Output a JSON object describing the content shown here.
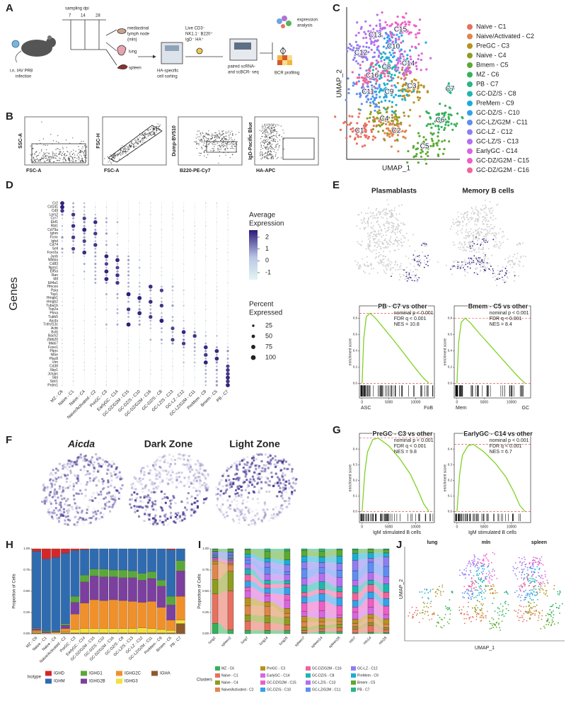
{
  "panel_labels": [
    "A",
    "B",
    "C",
    "D",
    "E",
    "F",
    "G",
    "H",
    "I",
    "J"
  ],
  "panel_a": {
    "texts": [
      "i.n. IAV PR8",
      "infection",
      "sampling dpi",
      "7",
      "14",
      "28",
      "mediastinal",
      "lymph node",
      "(mln)",
      "lung",
      "spleen",
      "HA-specific",
      "cell sorting",
      "Live CD3⁻",
      "NK1.1⁻ B220⁺",
      "IgD⁻ HA⁺",
      "paired scRNA-",
      "and scBCR- seq",
      "expression",
      "analysis",
      "BCR profiling"
    ]
  },
  "panel_b": {
    "axes": [
      [
        "SSC-A",
        "FSC-A"
      ],
      [
        "FSC-H",
        "FSC-A"
      ],
      [
        "Dump-BV510",
        "B220-PE-Cy7"
      ],
      [
        "IgD-Pacific Blue",
        "HA-APC"
      ]
    ]
  },
  "panel_c": {
    "x_label": "UMAP_1",
    "y_label": "UMAP_2",
    "map_labels": [
      "C1",
      "C2",
      "C3",
      "C4",
      "C5",
      "C6",
      "C7",
      "C8",
      "C9",
      "C10",
      "C11",
      "C12",
      "C13",
      "C14",
      "C15",
      "C16"
    ],
    "clusters": [
      {
        "name": "Naive - C1",
        "color": "#e8705f"
      },
      {
        "name": "Naive/Activated - C2",
        "color": "#e0864a"
      },
      {
        "name": "PreGC - C3",
        "color": "#b8921e"
      },
      {
        "name": "Naive - C4",
        "color": "#8e9c1f"
      },
      {
        "name": "Bmem - C5",
        "color": "#5aab2e"
      },
      {
        "name": "MZ - C6",
        "color": "#34b25a"
      },
      {
        "name": "PB - C7",
        "color": "#28b684"
      },
      {
        "name": "GC-DZ/S - C8",
        "color": "#1fb5b0"
      },
      {
        "name": "PreMem - C9",
        "color": "#1aaed6"
      },
      {
        "name": "GC-DZ/S - C10",
        "color": "#32a2ea"
      },
      {
        "name": "GC-LZ/G2M - C11",
        "color": "#5f8ef2"
      },
      {
        "name": "GC-LZ - C12",
        "color": "#8d7ff2"
      },
      {
        "name": "GC-LZ/S - C13",
        "color": "#b46ef0"
      },
      {
        "name": "EarlyGC - C14",
        "color": "#d865e0"
      },
      {
        "name": "GC-DZ/G2M - C15",
        "color": "#ee5fc6"
      },
      {
        "name": "GC-DZ/G2M - C16",
        "color": "#f0649c"
      }
    ]
  },
  "panel_d": {
    "y_label": "Genes",
    "genes": [
      "Cr2",
      "Cd1d1",
      "Cd9",
      "Lars2",
      "Ccr7",
      "Ebf1",
      "Rbl1",
      "Cd79a",
      "Ighm",
      "Fcmr",
      "Ighd",
      "Cd74",
      "Sell",
      "Fcer2a",
      "Junb",
      "Nfkbia",
      "Cd83",
      "Npm1",
      "Eif5a",
      "Ran",
      "Mif",
      "Eif4a1",
      "Hmces",
      "Ppia",
      "Top1",
      "Hmgb1",
      "Hmgb2",
      "Tuba1b",
      "Top2a",
      "Ptma",
      "Tubb5",
      "Aicda",
      "Tnfrsf13c",
      "Actb",
      "Bcl6",
      "Bach2",
      "Zbtb20",
      "Mki67",
      "Foxo1",
      "Ptprc",
      "Nt5e",
      "Plac8",
      "Vim",
      "Cd38",
      "Xbp1",
      "Jchain",
      "Slpi",
      "Sdc1",
      "Prdm1"
    ],
    "clusters": [
      "MZ - C6",
      "Naive - C1",
      "Naive - C4",
      "Naive/Activated - C2",
      "PreGC - C3",
      "EarlyGC - C14",
      "GC-DZ/G2M - C15",
      "GC-DZ/S - C10",
      "GC-DZ/G2M - C16",
      "GC-DZ/S - C8",
      "GC-LZ/S - C13",
      "GC-LZ - C12",
      "GC-LZ/G2M - C11",
      "PreMem - C9",
      "Bmem - C5",
      "PB - C7"
    ],
    "color_title": [
      "Average",
      "Expression"
    ],
    "color_ticks": [
      2,
      1,
      0,
      -1
    ],
    "clim": [
      -1.6,
      2.6
    ],
    "size_title": [
      "Percent",
      "Expressed"
    ],
    "size_ticks": [
      25,
      50,
      75,
      100
    ]
  },
  "panel_e": {
    "maps": [
      "Plasmablasts",
      "Memory B cells"
    ],
    "gsea": [
      {
        "title": "PB - C7 vs other",
        "stats": [
          "nominal p < 0.001",
          "FDR q < 0.001",
          "NES = 10.8"
        ],
        "y_label": "enrichment score",
        "x_ends": [
          "ASC",
          "FoB"
        ],
        "x": [
          0,
          300,
          800,
          1500,
          2500,
          4000,
          6000,
          8000,
          10000,
          11500,
          12500
        ],
        "values": [
          0,
          0.55,
          0.82,
          0.86,
          0.8,
          0.68,
          0.52,
          0.35,
          0.18,
          0.06,
          0
        ],
        "xlim": [
          -500,
          13500
        ],
        "ylim": [
          -0.18,
          0.95
        ],
        "xticks": [
          0,
          5000,
          10000
        ],
        "yticks": [
          {
            "value": 0,
            "label": "0.0"
          },
          0.2,
          0.4,
          0.6,
          0.8
        ]
      },
      {
        "title": "Bmem - C5 vs other",
        "stats": [
          "nominal p < 0.001",
          "FDR q < 0.001",
          "NES = 8.4"
        ],
        "y_label": "enrichment score",
        "x_ends": [
          "Mem",
          "GC"
        ],
        "x": [
          0,
          300,
          800,
          1500,
          2500,
          4000,
          6000,
          8000,
          10000,
          11500,
          12500
        ],
        "values": [
          0,
          0.5,
          0.75,
          0.8,
          0.74,
          0.62,
          0.47,
          0.32,
          0.17,
          0.06,
          0
        ],
        "xlim": [
          -500,
          13500
        ],
        "ylim": [
          -0.18,
          0.95
        ],
        "xticks": [
          0,
          5000,
          10000
        ],
        "yticks": [
          {
            "value": 0,
            "label": "0.0"
          },
          0.2,
          0.4,
          0.6,
          0.8
        ]
      }
    ]
  },
  "panel_f": {
    "titles": [
      "Aicda",
      "Dark Zone",
      "Light Zone"
    ]
  },
  "panel_g": {
    "gsea": [
      {
        "title": "PreGC - C3 vs other",
        "stats": [
          "nominal p < 0.001",
          "FDR q < 0.001",
          "NES = 9.8"
        ],
        "y_label": "enrichment score",
        "x_label": "IgM stimulated B cells",
        "x": [
          0,
          500,
          1000,
          2000,
          3000,
          5000,
          7000,
          9000,
          10500,
          11500,
          12500
        ],
        "values": [
          0,
          0.25,
          0.38,
          0.46,
          0.47,
          0.42,
          0.34,
          0.24,
          0.13,
          0.05,
          0
        ],
        "xlim": [
          -500,
          13500
        ],
        "ylim": [
          -0.07,
          0.5
        ],
        "xticks": [
          0,
          5000,
          10000
        ],
        "yticks": [
          {
            "value": 0,
            "label": "0.0"
          },
          0.1,
          0.2,
          0.3,
          0.4
        ]
      },
      {
        "title": "EarlyGC - C14 vs other",
        "stats": [
          "nominal p < 0.001",
          "FDR q < 0.001",
          "NES = 6.7"
        ],
        "y_label": "enrichment score",
        "x_label": "IgM stimulated B cells",
        "x": [
          0,
          500,
          1000,
          2000,
          3000,
          5000,
          7000,
          9000,
          10500,
          11500,
          12500
        ],
        "values": [
          0,
          0.24,
          0.36,
          0.42,
          0.43,
          0.38,
          0.31,
          0.22,
          0.12,
          0.04,
          0
        ],
        "xlim": [
          -500,
          13500
        ],
        "ylim": [
          -0.07,
          0.5
        ],
        "xticks": [
          0,
          5000,
          10000
        ],
        "yticks": [
          {
            "value": 0,
            "label": "0.0"
          },
          0.1,
          0.2,
          0.3,
          0.4
        ]
      }
    ]
  },
  "panel_h": {
    "type": "bar",
    "stacked": true,
    "y_label": "Proportion of Cells",
    "legend_title": "Isotype",
    "categories": [
      "MZ - C6",
      "Naive - C1",
      "Naive - C4",
      "Naive/Activated - C2",
      "PreGC - C3",
      "EarlyGC - C14",
      "GC-DZ/G2M - C15",
      "GC-DZ/S - C10",
      "GC-DZ/G2M - C16",
      "GC-DZ/S - C8",
      "GC-LZ/S - C13",
      "GC-LZ - C12",
      "GC-LZ/G2M - C11",
      "PreMem - C9",
      "Bmem - C5",
      "PB - C7"
    ],
    "series": [
      {
        "name": "IGHA",
        "color": "#8c5a2b",
        "values": [
          0.01,
          0,
          0,
          0.01,
          0.01,
          0.01,
          0.01,
          0.01,
          0.01,
          0.01,
          0.01,
          0.01,
          0.01,
          0.01,
          0.01,
          0.12
        ]
      },
      {
        "name": "IGHG3",
        "color": "#f2e23a",
        "values": [
          0.01,
          0,
          0.01,
          0.01,
          0.04,
          0.05,
          0.05,
          0.05,
          0.05,
          0.05,
          0.05,
          0.06,
          0.05,
          0.04,
          0.03,
          0.04
        ]
      },
      {
        "name": "IGHG2C",
        "color": "#f0902a",
        "values": [
          0.02,
          0.01,
          0.01,
          0.04,
          0.18,
          0.3,
          0.34,
          0.33,
          0.34,
          0.33,
          0.32,
          0.3,
          0.32,
          0.26,
          0.12,
          0.28
        ]
      },
      {
        "name": "IGHG2B",
        "color": "#7b3f9e",
        "values": [
          0.02,
          0.01,
          0.01,
          0.04,
          0.14,
          0.25,
          0.28,
          0.28,
          0.27,
          0.27,
          0.28,
          0.26,
          0.27,
          0.25,
          0.18,
          0.3
        ]
      },
      {
        "name": "IGHG1",
        "color": "#5aa83a",
        "values": [
          0.01,
          0.01,
          0.01,
          0.02,
          0.07,
          0.08,
          0.08,
          0.09,
          0.08,
          0.09,
          0.08,
          0.08,
          0.08,
          0.07,
          0.1,
          0.12
        ]
      },
      {
        "name": "IGHM",
        "color": "#2f6bb0",
        "values": [
          0.9,
          0.85,
          0.86,
          0.83,
          0.54,
          0.3,
          0.24,
          0.24,
          0.25,
          0.25,
          0.26,
          0.29,
          0.27,
          0.37,
          0.55,
          0.14
        ]
      },
      {
        "name": "IGHD",
        "color": "#d62728",
        "values": [
          0.03,
          0.12,
          0.1,
          0.05,
          0.02,
          0.01,
          0,
          0,
          0,
          0,
          0,
          0,
          0,
          0,
          0.01,
          0
        ]
      }
    ],
    "ylim": [
      0,
      1
    ],
    "yticks": [
      {
        "value": 0,
        "label": "0.00"
      },
      {
        "value": 0.25,
        "label": "0.25"
      },
      {
        "value": 0.5,
        "label": "0.50"
      },
      {
        "value": 0.75,
        "label": "0.75"
      },
      {
        "value": 1,
        "label": "1.00"
      }
    ]
  },
  "panel_i": {
    "y_label": "Proportion of Cells",
    "legend_title": "Clusters",
    "samples": [
      "lung2",
      "spleen2",
      "lung7",
      "lung14",
      "lung28",
      "spleen7",
      "spleen14",
      "spleen28",
      "mln7",
      "mln14",
      "mln28"
    ],
    "ylim": [
      0,
      1
    ],
    "yticks": [
      {
        "value": 0,
        "label": "0.00"
      },
      {
        "value": 0.25,
        "label": "0.25"
      },
      {
        "value": 0.5,
        "label": "0.50"
      },
      {
        "value": 0.75,
        "label": "0.75"
      },
      {
        "value": 1,
        "label": "1.00"
      }
    ]
  },
  "panel_j": {
    "titles": [
      "lung",
      "mln",
      "spleen"
    ],
    "x_label": "UMAP_1",
    "y_label": "UMAP_2"
  }
}
